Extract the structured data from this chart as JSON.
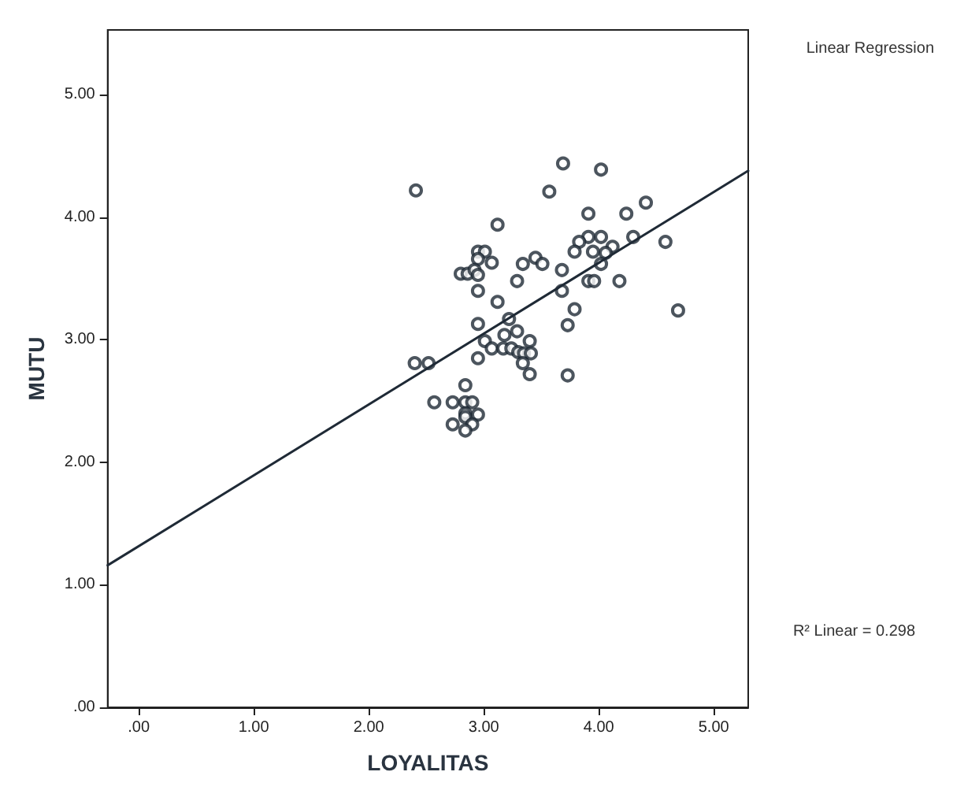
{
  "chart_data": {
    "type": "scatter",
    "xlabel": "LOYALITAS",
    "ylabel": "MUTU",
    "annotations": [
      "Linear Regression",
      "R² Linear = 0.298"
    ],
    "xlim": [
      -0.27,
      5.3
    ],
    "ylim": [
      0,
      5.53
    ],
    "xticks": [
      {
        "value": 0,
        "label": ".00"
      },
      {
        "value": 1,
        "label": "1.00"
      },
      {
        "value": 2,
        "label": "2.00"
      },
      {
        "value": 3,
        "label": "3.00"
      },
      {
        "value": 4,
        "label": "4.00"
      },
      {
        "value": 5,
        "label": "5.00"
      }
    ],
    "yticks": [
      {
        "value": 0,
        "label": ".00"
      },
      {
        "value": 1,
        "label": "1.00"
      },
      {
        "value": 2,
        "label": "2.00"
      },
      {
        "value": 3,
        "label": "3.00"
      },
      {
        "value": 4,
        "label": "4.00"
      },
      {
        "value": 5,
        "label": "5.00"
      }
    ],
    "grid": false,
    "marker": "circle",
    "series": [
      {
        "type": "scatter",
        "color": "#1f2a36",
        "x": [
          2.41,
          3.69,
          4.02,
          3.57,
          4.41,
          4.24,
          3.91,
          3.12,
          3.91,
          4.02,
          4.3,
          4.58,
          3.83,
          4.12,
          3.79,
          3.95,
          4.06,
          2.95,
          3.01,
          2.95,
          3.07,
          3.34,
          3.45,
          3.51,
          4.02,
          3.68,
          2.8,
          2.86,
          2.92,
          2.95,
          3.29,
          3.91,
          3.96,
          4.18,
          2.95,
          3.68,
          3.12,
          3.79,
          4.69,
          3.22,
          2.95,
          3.73,
          3.29,
          3.18,
          3.01,
          3.4,
          3.07,
          3.17,
          3.24,
          3.3,
          3.35,
          3.41,
          2.95,
          3.34,
          2.4,
          2.52,
          3.4,
          3.73,
          2.84,
          2.57,
          2.73,
          2.84,
          2.9,
          2.84,
          2.95,
          2.84,
          2.73,
          2.9,
          2.84
        ],
        "values": [
          4.22,
          4.44,
          4.39,
          4.21,
          4.12,
          4.03,
          4.03,
          3.94,
          3.84,
          3.84,
          3.84,
          3.8,
          3.8,
          3.76,
          3.72,
          3.72,
          3.71,
          3.72,
          3.72,
          3.66,
          3.63,
          3.62,
          3.67,
          3.62,
          3.62,
          3.57,
          3.54,
          3.54,
          3.57,
          3.53,
          3.48,
          3.48,
          3.48,
          3.48,
          3.4,
          3.4,
          3.31,
          3.25,
          3.24,
          3.17,
          3.13,
          3.12,
          3.07,
          3.04,
          2.99,
          2.99,
          2.93,
          2.93,
          2.93,
          2.9,
          2.89,
          2.89,
          2.85,
          2.81,
          2.81,
          2.81,
          2.72,
          2.71,
          2.63,
          2.49,
          2.49,
          2.49,
          2.49,
          2.4,
          2.39,
          2.37,
          2.31,
          2.31,
          2.26
        ]
      },
      {
        "type": "line",
        "color": "#1f2a36",
        "marker": "none",
        "line_style": "solid",
        "x": [
          -0.27,
          5.3
        ],
        "values": [
          1.16,
          4.38
        ]
      }
    ]
  }
}
